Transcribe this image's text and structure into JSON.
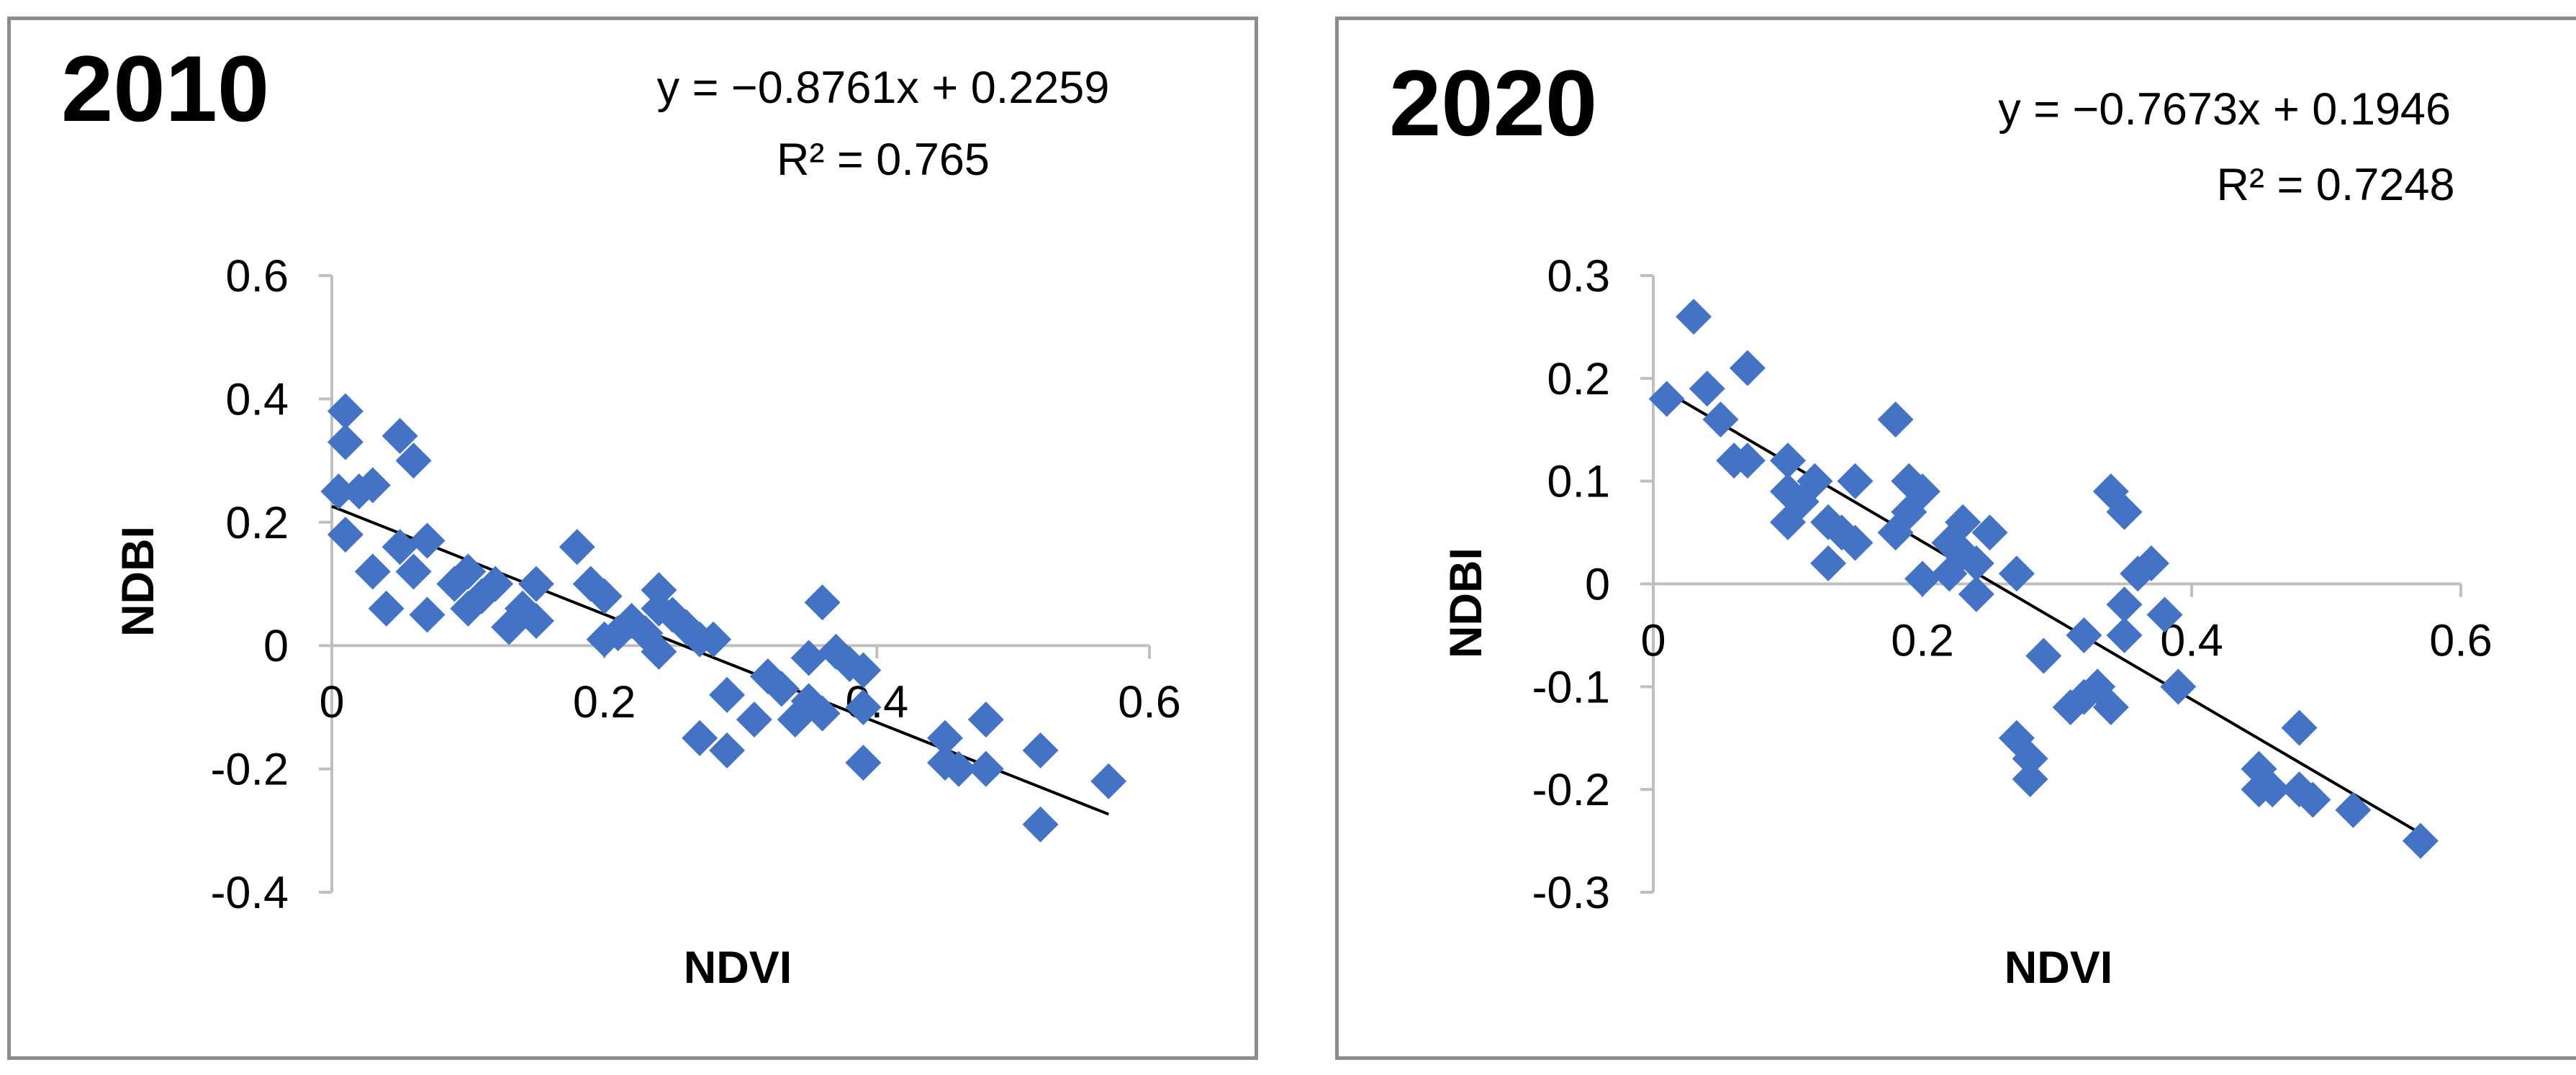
{
  "chart_data": [
    {
      "type": "scatter",
      "title": "2010",
      "xlabel": "NDVI",
      "ylabel": "NDBI",
      "xlim": [
        0,
        0.6
      ],
      "ylim": [
        -0.4,
        0.6
      ],
      "xticks": [
        "0",
        "0.2",
        "0.4",
        "0.6"
      ],
      "yticks": [
        "-0.4",
        "-0.2",
        "0",
        "0.2",
        "0.4",
        "0.6"
      ],
      "xtick_values": [
        0,
        0.2,
        0.4,
        0.6
      ],
      "ytick_values": [
        -0.4,
        -0.2,
        0,
        0.2,
        0.4,
        0.6
      ],
      "equation": "y = −0.8761x + 0.2259",
      "r_squared": "R² = 0.765",
      "trendline": {
        "slope": -0.8761,
        "intercept": 0.2259,
        "x_range": [
          0.0,
          0.57
        ]
      },
      "marker_color": "#4472c4",
      "line_color": "#000000",
      "grid": false,
      "legend": "none",
      "points": [
        [
          0.01,
          0.38
        ],
        [
          0.01,
          0.33
        ],
        [
          0.005,
          0.25
        ],
        [
          0.02,
          0.25
        ],
        [
          0.01,
          0.18
        ],
        [
          0.03,
          0.26
        ],
        [
          0.03,
          0.12
        ],
        [
          0.04,
          0.06
        ],
        [
          0.05,
          0.34
        ],
        [
          0.06,
          0.3
        ],
        [
          0.05,
          0.16
        ],
        [
          0.06,
          0.12
        ],
        [
          0.07,
          0.05
        ],
        [
          0.07,
          0.17
        ],
        [
          0.09,
          0.1
        ],
        [
          0.1,
          0.06
        ],
        [
          0.1,
          0.12
        ],
        [
          0.11,
          0.08
        ],
        [
          0.12,
          0.1
        ],
        [
          0.13,
          0.03
        ],
        [
          0.14,
          0.06
        ],
        [
          0.15,
          0.04
        ],
        [
          0.15,
          0.1
        ],
        [
          0.18,
          0.16
        ],
        [
          0.19,
          0.1
        ],
        [
          0.2,
          0.08
        ],
        [
          0.2,
          0.01
        ],
        [
          0.21,
          0.02
        ],
        [
          0.22,
          0.04
        ],
        [
          0.23,
          0.02
        ],
        [
          0.24,
          0.09
        ],
        [
          0.24,
          0.06
        ],
        [
          0.24,
          -0.01
        ],
        [
          0.25,
          0.05
        ],
        [
          0.26,
          0.03
        ],
        [
          0.27,
          0.01
        ],
        [
          0.28,
          0.01
        ],
        [
          0.27,
          -0.15
        ],
        [
          0.29,
          -0.17
        ],
        [
          0.29,
          -0.08
        ],
        [
          0.31,
          -0.12
        ],
        [
          0.32,
          -0.05
        ],
        [
          0.33,
          -0.07
        ],
        [
          0.34,
          -0.12
        ],
        [
          0.35,
          -0.09
        ],
        [
          0.35,
          -0.02
        ],
        [
          0.36,
          0.07
        ],
        [
          0.36,
          -0.11
        ],
        [
          0.37,
          -0.01
        ],
        [
          0.38,
          -0.03
        ],
        [
          0.39,
          -0.04
        ],
        [
          0.39,
          -0.1
        ],
        [
          0.39,
          -0.19
        ],
        [
          0.45,
          -0.15
        ],
        [
          0.45,
          -0.19
        ],
        [
          0.46,
          -0.2
        ],
        [
          0.48,
          -0.2
        ],
        [
          0.48,
          -0.12
        ],
        [
          0.52,
          -0.17
        ],
        [
          0.52,
          -0.29
        ],
        [
          0.57,
          -0.22
        ]
      ]
    },
    {
      "type": "scatter",
      "title": "2020",
      "xlabel": "NDVI",
      "ylabel": "NDBI",
      "xlim": [
        0,
        0.6
      ],
      "ylim": [
        -0.3,
        0.3
      ],
      "xticks": [
        "0",
        "0.2",
        "0.4",
        "0.6"
      ],
      "yticks": [
        "-0.3",
        "-0.2",
        "-0.1",
        "0",
        "0.1",
        "0.2",
        "0.3"
      ],
      "xtick_values": [
        0,
        0.2,
        0.4,
        0.6
      ],
      "ytick_values": [
        -0.3,
        -0.2,
        -0.1,
        0,
        0.1,
        0.2,
        0.3
      ],
      "equation": "y = −0.7673x + 0.1946",
      "r_squared": "R² = 0.7248",
      "trendline": {
        "slope": -0.7673,
        "intercept": 0.1946,
        "x_range": [
          0.01,
          0.57
        ]
      },
      "marker_color": "#4472c4",
      "line_color": "#000000",
      "grid": false,
      "legend": "none",
      "points": [
        [
          0.01,
          0.18
        ],
        [
          0.03,
          0.26
        ],
        [
          0.04,
          0.19
        ],
        [
          0.05,
          0.16
        ],
        [
          0.06,
          0.12
        ],
        [
          0.07,
          0.21
        ],
        [
          0.07,
          0.12
        ],
        [
          0.1,
          0.12
        ],
        [
          0.1,
          0.09
        ],
        [
          0.1,
          0.06
        ],
        [
          0.11,
          0.08
        ],
        [
          0.12,
          0.1
        ],
        [
          0.13,
          0.06
        ],
        [
          0.13,
          0.02
        ],
        [
          0.14,
          0.05
        ],
        [
          0.15,
          0.04
        ],
        [
          0.15,
          0.1
        ],
        [
          0.18,
          0.16
        ],
        [
          0.18,
          0.05
        ],
        [
          0.19,
          0.1
        ],
        [
          0.19,
          0.07
        ],
        [
          0.2,
          0.09
        ],
        [
          0.2,
          0.005
        ],
        [
          0.22,
          0.01
        ],
        [
          0.22,
          0.04
        ],
        [
          0.23,
          0.06
        ],
        [
          0.23,
          0.03
        ],
        [
          0.24,
          0.02
        ],
        [
          0.24,
          -0.01
        ],
        [
          0.25,
          0.05
        ],
        [
          0.27,
          0.01
        ],
        [
          0.27,
          -0.15
        ],
        [
          0.28,
          -0.19
        ],
        [
          0.28,
          -0.17
        ],
        [
          0.29,
          -0.07
        ],
        [
          0.31,
          -0.12
        ],
        [
          0.32,
          -0.05
        ],
        [
          0.32,
          -0.11
        ],
        [
          0.33,
          -0.1
        ],
        [
          0.34,
          0.09
        ],
        [
          0.34,
          -0.12
        ],
        [
          0.35,
          0.07
        ],
        [
          0.35,
          -0.05
        ],
        [
          0.35,
          -0.02
        ],
        [
          0.36,
          0.01
        ],
        [
          0.37,
          0.02
        ],
        [
          0.38,
          -0.03
        ],
        [
          0.39,
          -0.1
        ],
        [
          0.45,
          -0.18
        ],
        [
          0.45,
          -0.2
        ],
        [
          0.46,
          -0.2
        ],
        [
          0.48,
          -0.14
        ],
        [
          0.48,
          -0.2
        ],
        [
          0.49,
          -0.21
        ],
        [
          0.52,
          -0.22
        ],
        [
          0.57,
          -0.25
        ]
      ]
    }
  ]
}
